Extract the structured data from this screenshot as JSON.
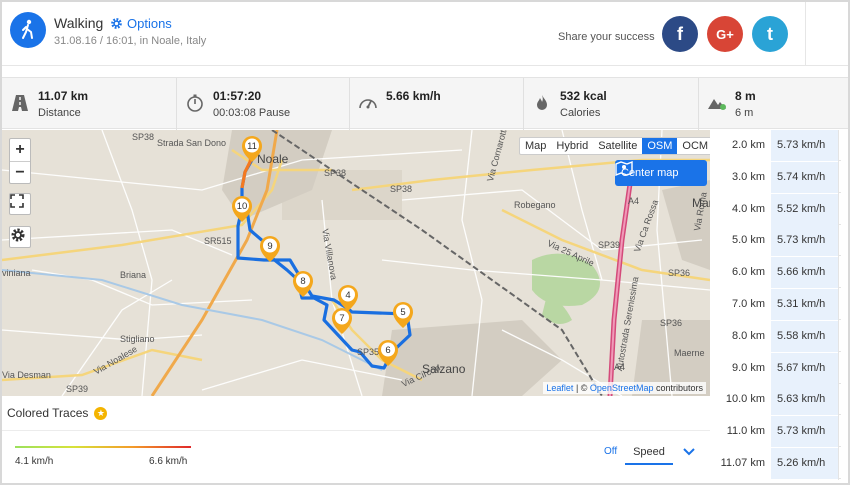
{
  "header": {
    "sport": "Walking",
    "options": "Options",
    "subtitle": "31.08.16 / 16:01, in Noale, Italy",
    "share": "Share your success",
    "social": {
      "facebook": "f",
      "google": "G+",
      "twitter": "t"
    }
  },
  "stats": [
    {
      "icon": "road-icon",
      "value": "11.07 km",
      "label": "Distance"
    },
    {
      "icon": "stopwatch-icon",
      "value": "01:57:20",
      "label": "00:03:08 Pause"
    },
    {
      "icon": "speedometer-icon",
      "value": "5.66 km/h",
      "label": ""
    },
    {
      "icon": "flame-icon",
      "value": "532 kcal",
      "label": "Calories"
    },
    {
      "icon": "mountain-icon",
      "value": "8 m",
      "label": "6 m"
    }
  ],
  "map": {
    "zoom_in": "+",
    "zoom_out": "−",
    "layers": [
      "Map",
      "Hybrid",
      "Satellite",
      "OSM",
      "OCM"
    ],
    "active_layer": "OSM",
    "center_map": "Center map",
    "attribution_leaflet": "Leaflet",
    "attribution_sep": " | © ",
    "attribution_osm": "OpenStreetMap",
    "attribution_tail": " contributors",
    "places": {
      "noale": "Noale",
      "salzano": "Salzano",
      "robegano": "Robegano",
      "briana": "Briana",
      "stigliano": "Stigliano",
      "viniana": "viniana",
      "maerne": "Maerne",
      "mar": "Mar"
    },
    "roads": {
      "sp38a": "SP38",
      "sp38b": "SP38",
      "sp38c": "SP38",
      "sr515": "SR515",
      "sp39": "SP39",
      "sp35": "SP35",
      "sp36a": "SP36",
      "sp36b": "SP36",
      "a4a": "A4",
      "a4b": "A4",
      "strada": "Strada San Dono",
      "villanova": "Via Villanova",
      "desman": "Via Desman",
      "noalese": "Via Noalese",
      "circon": "Via Circon",
      "aprile": "Via 25 Aprile",
      "caerossa": "Via Ca Rossa",
      "roma": "Via Roma",
      "cornarotta": "Via Cornarotta",
      "autostrada": "Autostrada Serenissima"
    },
    "markers": [
      "11",
      "10",
      "9",
      "8",
      "4",
      "7",
      "5",
      "6"
    ]
  },
  "splits": [
    {
      "distance": "2.0 km",
      "speed": "5.73 km/h"
    },
    {
      "distance": "3.0 km",
      "speed": "5.74 km/h"
    },
    {
      "distance": "4.0 km",
      "speed": "5.52 km/h"
    },
    {
      "distance": "5.0 km",
      "speed": "5.73 km/h"
    },
    {
      "distance": "6.0 km",
      "speed": "5.66 km/h"
    },
    {
      "distance": "7.0 km",
      "speed": "5.31 km/h"
    },
    {
      "distance": "8.0 km",
      "speed": "5.58 km/h"
    },
    {
      "distance": "9.0 km",
      "speed": "5.67 km/h"
    },
    {
      "distance": "10.0 km",
      "speed": "5.63 km/h"
    },
    {
      "distance": "11.0 km",
      "speed": "5.73 km/h"
    },
    {
      "distance": "11.07 km",
      "speed": "5.26 km/h"
    }
  ],
  "colored_traces": {
    "title": "Colored Traces",
    "min": "4.1 km/h",
    "max": "6.6 km/h",
    "off": "Off",
    "mode": "Speed"
  },
  "colors": {
    "accent": "#1a73e8",
    "route": "#1a6fe0",
    "marker": "#f4a71c"
  }
}
